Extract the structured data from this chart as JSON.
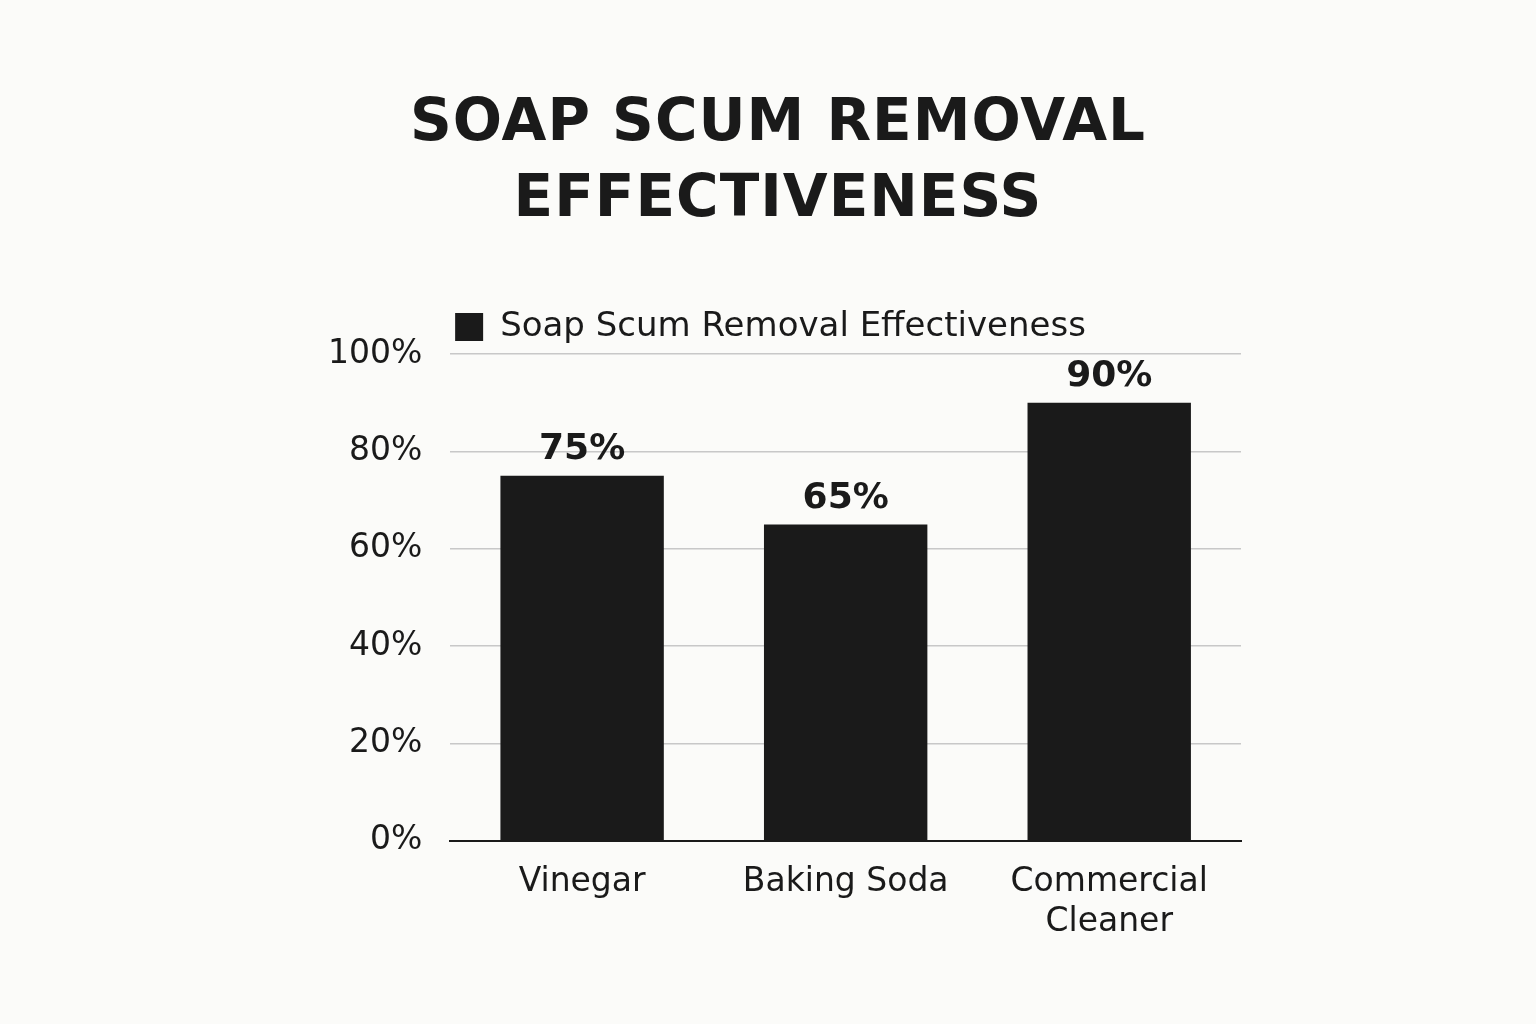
{
  "chart_data": {
    "type": "bar",
    "title": "SOAP SCUM REMOVAL EFFECTIVENESS",
    "categories": [
      "Vinegar",
      "Baking Soda",
      "Commercial Cleaner"
    ],
    "series": [
      {
        "name": "Soap Scum Removal Effectiveness",
        "color": "#1a1a1a",
        "values": [
          75,
          65,
          90
        ],
        "value_labels": [
          "75%",
          "65%",
          "90%"
        ]
      }
    ],
    "ylim": [
      0,
      100
    ],
    "yticks": [
      {
        "value": 0,
        "label": "0%"
      },
      {
        "value": 20,
        "label": "20%"
      },
      {
        "value": 40,
        "label": "40%"
      },
      {
        "value": 60,
        "label": "60%"
      },
      {
        "value": 80,
        "label": "80%"
      },
      {
        "value": 100,
        "label": "100%"
      }
    ],
    "grid": "y",
    "legend": "top"
  }
}
